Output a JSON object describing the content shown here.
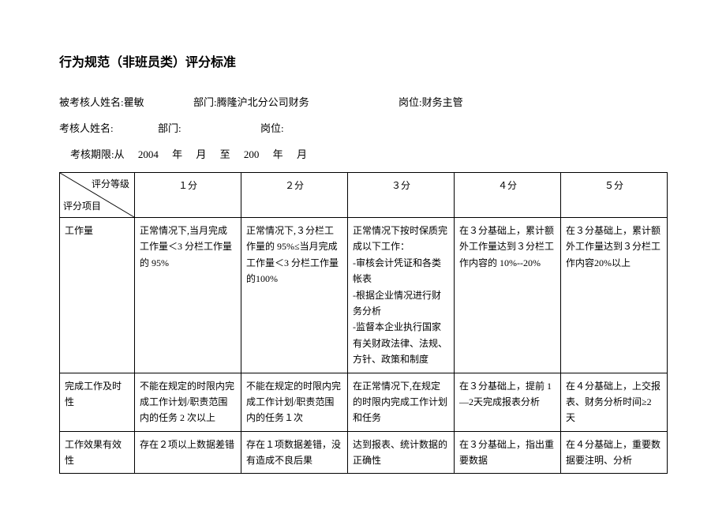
{
  "title": "行为规范（非班员类）评分标准",
  "header": {
    "evaluee_label": "被考核人姓名:",
    "evaluee_name": "瞿敏",
    "dept_label": "部门:",
    "evaluee_dept": "腾隆沪北分公司财务",
    "post_label": "岗位:",
    "evaluee_post": "财务主管",
    "evaluator_label": "考核人姓名:",
    "evaluator_dept": "",
    "evaluator_post": "",
    "period_label": "考核期限:从",
    "from_year": "2004",
    "year_word": "年",
    "month_word": "月",
    "to_word": "至",
    "to_year": "200"
  },
  "table": {
    "diag_top": "评分等级",
    "diag_bot": "评分项目",
    "headers": [
      "１分",
      "２分",
      "３分",
      "４分",
      "５分"
    ],
    "rows": [
      {
        "label": "工作量",
        "cells": [
          "正常情况下,当月完成工作量＜3 分栏工作量的 95%",
          "正常情况下,３分栏工作量的 95%≤当月完成工作量＜3 分栏工作量的100%",
          "正常情况下按时保质完成以下工作：\n-审核会计凭证和各类帐表\n-根据企业情况进行财务分析\n-监督本企业执行国家有关财政法律、法规、方针、政策和制度",
          "在３分基础上，累计额外工作量达到３分栏工作内容的 10%--20%",
          "在３分基础上，累计额外工作量达到３分栏工作内容20%以上"
        ]
      },
      {
        "label": "完成工作及时性",
        "cells": [
          "不能在规定的时限内完成工作计划/职责范围内的任务 2 次以上",
          "不能在规定的时限内完成工作计划/职责范围内的任务１次",
          "在正常情况下,在规定的时限内完成工作计划和任务",
          "在３分基础上，提前 1—2天完成报表分析",
          "在４分基础上，上交报表、财务分析时间≥2 天"
        ]
      },
      {
        "label": "工作效果有效性",
        "cells": [
          "存在２项以上数据差错",
          "存在１项数据差错，没有造成不良后果",
          "达到报表、统计数据的正确性",
          "在３分基础上，指出重要数据",
          "在４分基础上，重要数据要注明、分析"
        ]
      }
    ]
  }
}
